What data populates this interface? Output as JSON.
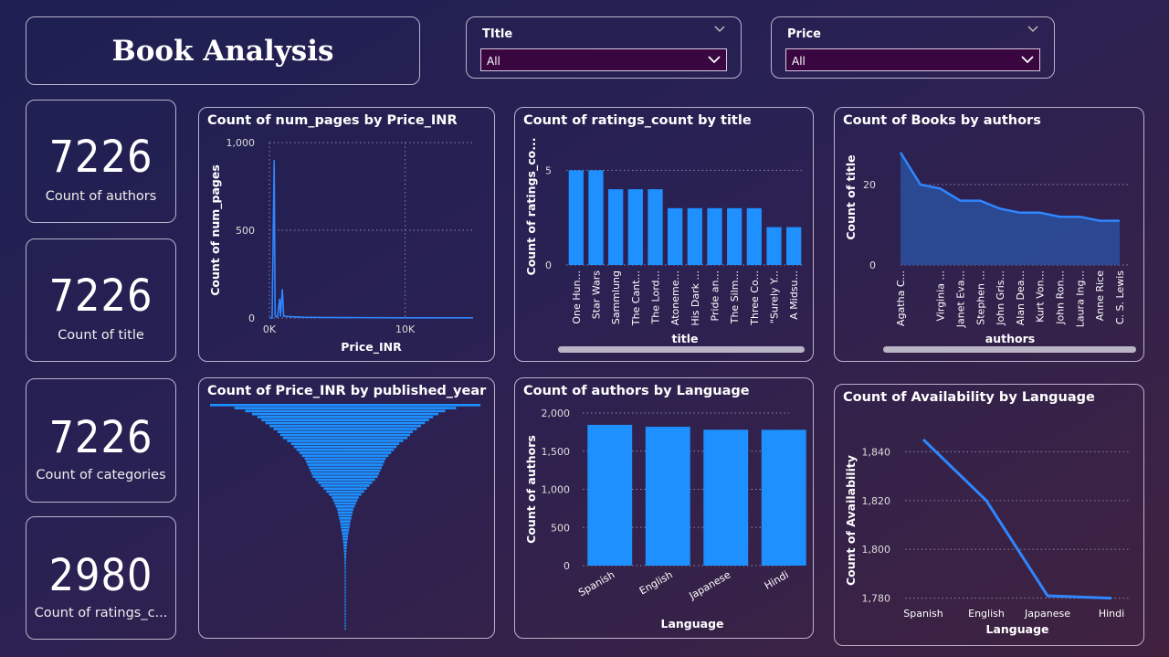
{
  "header": {
    "title": "Book Analysis"
  },
  "slicers": [
    {
      "label": "TItle",
      "value": "All"
    },
    {
      "label": "Price",
      "value": "All"
    }
  ],
  "kpis": [
    {
      "value": "7226",
      "caption": "Count of authors"
    },
    {
      "value": "7226",
      "caption": "Count of title"
    },
    {
      "value": "7226",
      "caption": "Count of categories"
    },
    {
      "value": "2980",
      "caption": "Count of ratings_c..."
    }
  ],
  "colors": {
    "bar": "#1e90ff",
    "area_fill": "#2b4c9a",
    "line": "#2f86ff"
  },
  "chart_data": [
    {
      "id": "pages-by-price",
      "type": "line",
      "title": "Count of num_pages by Price_INR",
      "xlabel": "Price_INR",
      "ylabel": "Count of num_pages",
      "x_ticks": [
        "0K",
        "10K"
      ],
      "y_ticks": [
        "0",
        "500",
        "1,000"
      ],
      "xlim": [
        0,
        15000
      ],
      "ylim": [
        0,
        1000
      ],
      "points": [
        [
          0,
          0
        ],
        [
          200,
          0
        ],
        [
          350,
          900
        ],
        [
          420,
          15
        ],
        [
          520,
          5
        ],
        [
          600,
          8
        ],
        [
          760,
          110
        ],
        [
          820,
          8
        ],
        [
          950,
          165
        ],
        [
          1050,
          10
        ],
        [
          1400,
          8
        ],
        [
          2500,
          4
        ],
        [
          4000,
          3
        ],
        [
          7000,
          2
        ],
        [
          10000,
          1
        ],
        [
          15000,
          1
        ]
      ]
    },
    {
      "id": "ratings-by-title",
      "type": "bar",
      "title": "Count of ratings_count by title",
      "xlabel": "title",
      "ylabel": "Count of ratings_co...",
      "y_ticks": [
        "0",
        "5"
      ],
      "ylim": [
        0,
        5.5
      ],
      "categories": [
        "One Hun...",
        "Star Wars",
        "Sammlung",
        "The Cant...",
        "The Lord...",
        "Atoneme...",
        "His Dark ...",
        "Pride an...",
        "The Silm...",
        "Three Co...",
        "\"Surely Y...",
        "A Midsu..."
      ],
      "values": [
        5,
        5,
        4,
        4,
        4,
        3,
        3,
        3,
        3,
        3,
        2,
        2
      ]
    },
    {
      "id": "books-by-authors",
      "type": "area",
      "title": "Count of Books by authors",
      "xlabel": "authors",
      "ylabel": "Count of title",
      "y_ticks": [
        "0",
        "20"
      ],
      "ylim": [
        0,
        30
      ],
      "categories": [
        "Agatha C...",
        "",
        "Virginia ...",
        "Janet Eva...",
        "Stephen ...",
        "John Gris...",
        "Alan Dea...",
        "Kurt Von...",
        "John Ron...",
        "Laura Ing...",
        "Anne Rice",
        "C. S. Lewis"
      ],
      "values": [
        28,
        20,
        19,
        16,
        16,
        14,
        13,
        13,
        12,
        12,
        11,
        11
      ]
    },
    {
      "id": "price-by-year",
      "type": "bar",
      "title": "Count of Price_INR by published_year",
      "values": [
        100,
        82,
        74,
        69,
        65,
        62,
        59,
        56,
        53,
        50,
        48,
        46,
        43,
        40,
        38,
        36,
        34,
        32,
        30,
        29,
        28,
        27,
        26,
        25,
        24,
        22,
        20,
        18,
        16,
        14,
        12,
        10,
        9,
        8,
        7,
        6,
        5.5,
        5,
        4.5,
        4,
        3.6,
        3.2,
        2.8,
        2.4,
        2.1,
        1.8,
        1.5,
        1.3,
        1.1,
        0.9,
        0.8,
        0.7,
        0.6,
        0.5,
        0.45,
        0.4,
        0.35,
        0.3,
        0.28,
        0.26,
        0.24,
        0.22,
        0.2,
        0.18,
        0.16,
        0.14,
        0.12,
        0.11,
        0.1,
        0.09,
        0.08,
        0.07,
        0.06,
        0.05,
        0.045,
        0.04
      ]
    },
    {
      "id": "authors-by-language",
      "type": "bar",
      "title": "Count of authors by Language",
      "xlabel": "Language",
      "ylabel": "Count of authors",
      "y_ticks": [
        "0",
        "500",
        "1,000",
        "1,500",
        "2,000"
      ],
      "ylim": [
        0,
        2000
      ],
      "categories": [
        "Spanish",
        "English",
        "Japanese",
        "Hindi"
      ],
      "values": [
        1845,
        1820,
        1781,
        1780
      ]
    },
    {
      "id": "availability-by-language",
      "type": "line",
      "title": "Count of Availability by Language",
      "xlabel": "Language",
      "ylabel": "Count of Availability",
      "y_ticks": [
        "1,780",
        "1,800",
        "1,820",
        "1,840"
      ],
      "ylim": [
        1778,
        1848
      ],
      "categories": [
        "Spanish",
        "English",
        "Japanese",
        "Hindi"
      ],
      "values": [
        1845,
        1820,
        1781,
        1780
      ]
    }
  ]
}
